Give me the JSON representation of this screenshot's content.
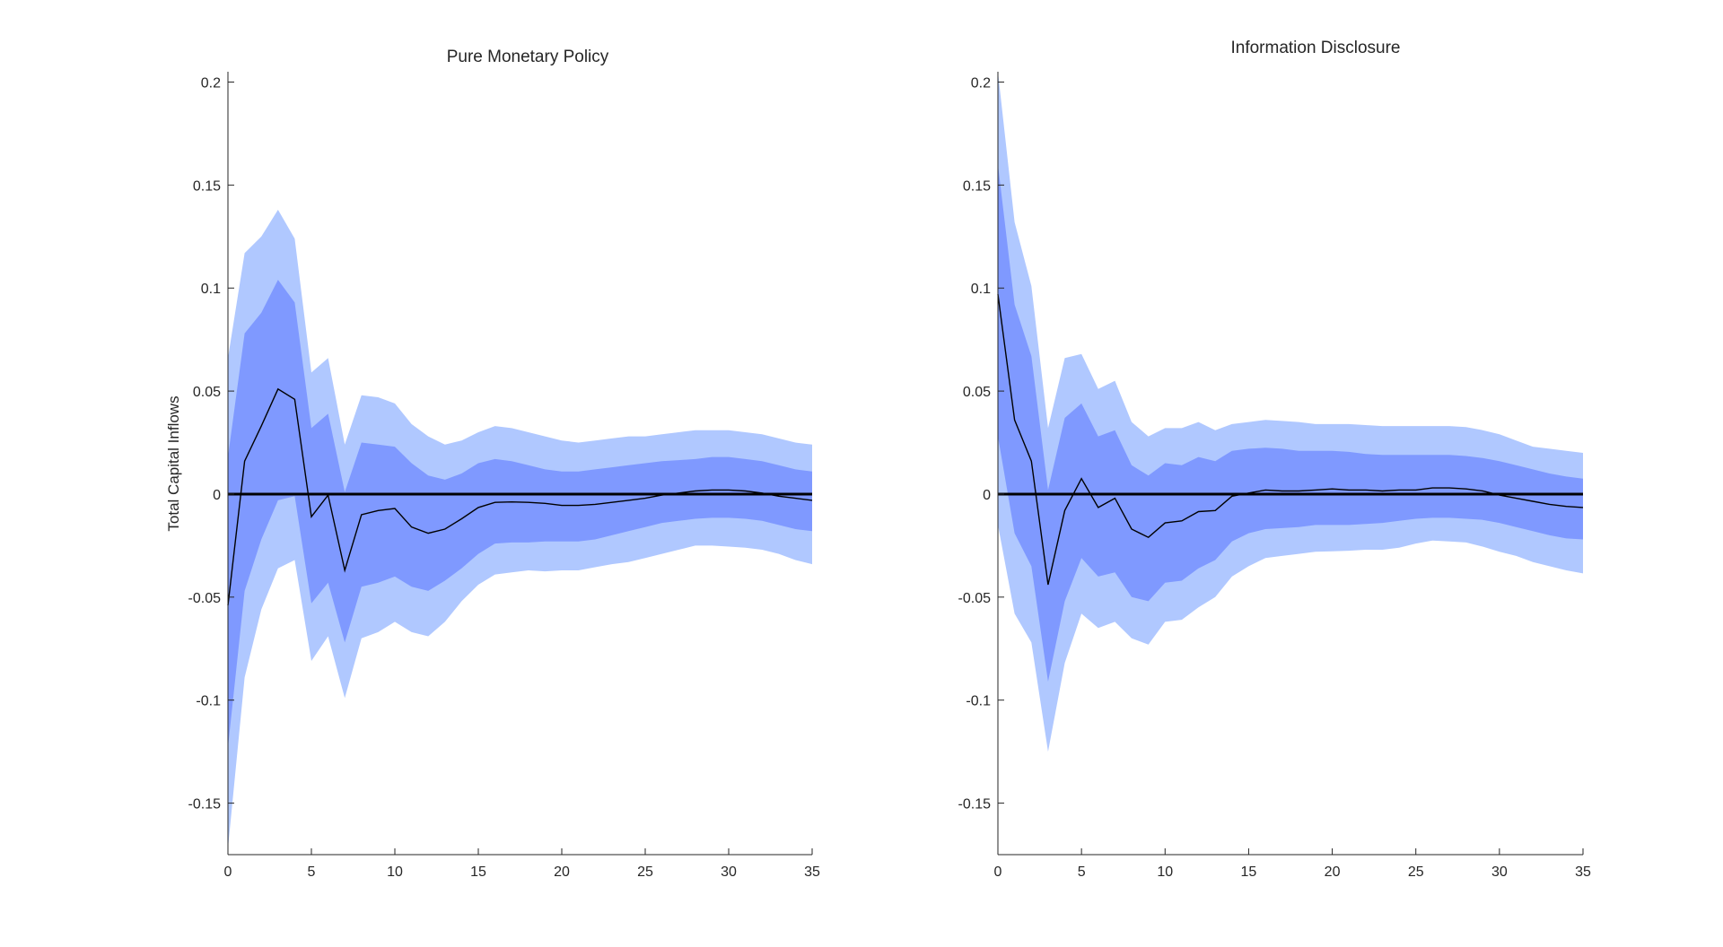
{
  "colors": {
    "outer_band": "#b0c8ff",
    "inner_band": "#7f99ff",
    "line": "#000000",
    "axis": "#262626"
  },
  "chart_data": [
    {
      "type": "area",
      "title": "Pure Monetary Policy",
      "xlabel": "",
      "ylabel": "Total Capital Inflows",
      "xlim": [
        0,
        35
      ],
      "ylim": [
        -0.175,
        0.205
      ],
      "xticks": [
        0,
        5,
        10,
        15,
        20,
        25,
        30,
        35
      ],
      "yticks": [
        -0.15,
        -0.1,
        -0.05,
        0,
        0.05,
        0.1,
        0.15,
        0.2
      ],
      "ytick_labels": [
        "-0.15",
        "-0.1",
        "-0.05",
        "0",
        "0.05",
        "0.1",
        "0.15",
        "0.2"
      ],
      "grid": false,
      "x": [
        0,
        1,
        2,
        3,
        4,
        5,
        6,
        7,
        8,
        9,
        10,
        11,
        12,
        13,
        14,
        15,
        16,
        17,
        18,
        19,
        20,
        21,
        22,
        23,
        24,
        25,
        26,
        27,
        28,
        29,
        30,
        31,
        32,
        33,
        34,
        35
      ],
      "series": [
        {
          "name": "median",
          "values": [
            -0.054,
            0.016,
            0.033,
            0.051,
            0.046,
            -0.011,
            -0.0005,
            -0.037,
            -0.01,
            -0.008,
            -0.007,
            -0.016,
            -0.019,
            -0.017,
            -0.012,
            -0.0065,
            -0.004,
            -0.0038,
            -0.004,
            -0.0045,
            -0.0055,
            -0.0055,
            -0.005,
            -0.004,
            -0.003,
            -0.002,
            -0.0005,
            0.0005,
            0.0015,
            0.002,
            0.002,
            0.0015,
            0.0005,
            -0.001,
            -0.002,
            -0.003
          ]
        },
        {
          "name": "inner_upper",
          "values": [
            0.018,
            0.078,
            0.088,
            0.104,
            0.093,
            0.032,
            0.039,
            0.001,
            0.025,
            0.024,
            0.023,
            0.015,
            0.009,
            0.007,
            0.01,
            0.015,
            0.017,
            0.016,
            0.014,
            0.012,
            0.011,
            0.011,
            0.012,
            0.013,
            0.014,
            0.015,
            0.016,
            0.0165,
            0.017,
            0.018,
            0.018,
            0.017,
            0.016,
            0.014,
            0.012,
            0.011
          ]
        },
        {
          "name": "inner_lower",
          "values": [
            -0.123,
            -0.047,
            -0.022,
            -0.003,
            -0.001,
            -0.053,
            -0.043,
            -0.072,
            -0.045,
            -0.043,
            -0.04,
            -0.045,
            -0.047,
            -0.042,
            -0.036,
            -0.029,
            -0.024,
            -0.0235,
            -0.0235,
            -0.023,
            -0.023,
            -0.023,
            -0.022,
            -0.02,
            -0.018,
            -0.016,
            -0.014,
            -0.013,
            -0.012,
            -0.0115,
            -0.0115,
            -0.012,
            -0.013,
            -0.015,
            -0.017,
            -0.018
          ]
        },
        {
          "name": "outer_upper",
          "values": [
            0.066,
            0.117,
            0.125,
            0.138,
            0.124,
            0.059,
            0.066,
            0.024,
            0.048,
            0.047,
            0.044,
            0.034,
            0.028,
            0.024,
            0.026,
            0.03,
            0.033,
            0.032,
            0.03,
            0.028,
            0.026,
            0.025,
            0.026,
            0.027,
            0.028,
            0.028,
            0.029,
            0.03,
            0.031,
            0.031,
            0.031,
            0.03,
            0.029,
            0.027,
            0.025,
            0.024
          ]
        },
        {
          "name": "outer_lower",
          "values": [
            -0.172,
            -0.089,
            -0.056,
            -0.036,
            -0.032,
            -0.081,
            -0.069,
            -0.099,
            -0.07,
            -0.067,
            -0.062,
            -0.067,
            -0.069,
            -0.062,
            -0.052,
            -0.044,
            -0.039,
            -0.038,
            -0.037,
            -0.0375,
            -0.037,
            -0.037,
            -0.0355,
            -0.034,
            -0.033,
            -0.031,
            -0.029,
            -0.027,
            -0.025,
            -0.025,
            -0.0255,
            -0.026,
            -0.027,
            -0.029,
            -0.032,
            -0.034
          ]
        }
      ]
    },
    {
      "type": "area",
      "title": "Information Disclosure",
      "xlabel": "",
      "ylabel": "",
      "xlim": [
        0,
        35
      ],
      "ylim": [
        -0.175,
        0.205
      ],
      "xticks": [
        0,
        5,
        10,
        15,
        20,
        25,
        30,
        35
      ],
      "yticks": [
        -0.15,
        -0.1,
        -0.05,
        0,
        0.05,
        0.1,
        0.15,
        0.2
      ],
      "ytick_labels": [
        "-0.15",
        "-0.1",
        "-0.05",
        "0",
        "0.05",
        "0.1",
        "0.15",
        "0.2"
      ],
      "grid": false,
      "x": [
        0,
        1,
        2,
        3,
        4,
        5,
        6,
        7,
        8,
        9,
        10,
        11,
        12,
        13,
        14,
        15,
        16,
        17,
        18,
        19,
        20,
        21,
        22,
        23,
        24,
        25,
        26,
        27,
        28,
        29,
        30,
        31,
        32,
        33,
        34,
        35
      ],
      "series": [
        {
          "name": "median",
          "values": [
            0.097,
            0.036,
            0.016,
            -0.044,
            -0.008,
            0.0075,
            -0.0065,
            -0.002,
            -0.017,
            -0.021,
            -0.014,
            -0.013,
            -0.0085,
            -0.008,
            -0.001,
            0.0005,
            0.002,
            0.0015,
            0.0015,
            0.002,
            0.0025,
            0.002,
            0.002,
            0.0015,
            0.002,
            0.002,
            0.003,
            0.003,
            0.0025,
            0.0015,
            -0.0005,
            -0.002,
            -0.0035,
            -0.005,
            -0.006,
            -0.0065
          ]
        },
        {
          "name": "inner_upper",
          "values": [
            0.16,
            0.092,
            0.067,
            0.002,
            0.037,
            0.044,
            0.028,
            0.031,
            0.014,
            0.009,
            0.015,
            0.014,
            0.018,
            0.016,
            0.021,
            0.022,
            0.0225,
            0.022,
            0.021,
            0.021,
            0.021,
            0.0205,
            0.0195,
            0.019,
            0.019,
            0.019,
            0.019,
            0.019,
            0.0185,
            0.0175,
            0.016,
            0.014,
            0.012,
            0.01,
            0.0085,
            0.0075
          ]
        },
        {
          "name": "inner_lower",
          "values": [
            0.028,
            -0.019,
            -0.035,
            -0.091,
            -0.052,
            -0.031,
            -0.04,
            -0.038,
            -0.05,
            -0.052,
            -0.043,
            -0.042,
            -0.036,
            -0.032,
            -0.023,
            -0.019,
            -0.017,
            -0.0165,
            -0.016,
            -0.015,
            -0.015,
            -0.015,
            -0.0145,
            -0.014,
            -0.013,
            -0.012,
            -0.0115,
            -0.0115,
            -0.012,
            -0.0125,
            -0.014,
            -0.016,
            -0.018,
            -0.02,
            -0.0215,
            -0.022
          ]
        },
        {
          "name": "outer_upper",
          "values": [
            0.205,
            0.132,
            0.101,
            0.032,
            0.066,
            0.068,
            0.051,
            0.055,
            0.035,
            0.028,
            0.032,
            0.032,
            0.035,
            0.031,
            0.034,
            0.035,
            0.036,
            0.0355,
            0.035,
            0.034,
            0.034,
            0.034,
            0.0335,
            0.033,
            0.033,
            0.033,
            0.033,
            0.033,
            0.0325,
            0.031,
            0.029,
            0.026,
            0.023,
            0.022,
            0.021,
            0.02
          ]
        },
        {
          "name": "outer_lower",
          "values": [
            -0.015,
            -0.058,
            -0.072,
            -0.125,
            -0.082,
            -0.058,
            -0.065,
            -0.062,
            -0.07,
            -0.073,
            -0.062,
            -0.061,
            -0.055,
            -0.05,
            -0.04,
            -0.035,
            -0.031,
            -0.03,
            -0.029,
            -0.028,
            -0.0278,
            -0.0275,
            -0.027,
            -0.027,
            -0.026,
            -0.024,
            -0.0225,
            -0.023,
            -0.0235,
            -0.0255,
            -0.028,
            -0.03,
            -0.033,
            -0.035,
            -0.037,
            -0.0385
          ]
        }
      ]
    }
  ]
}
